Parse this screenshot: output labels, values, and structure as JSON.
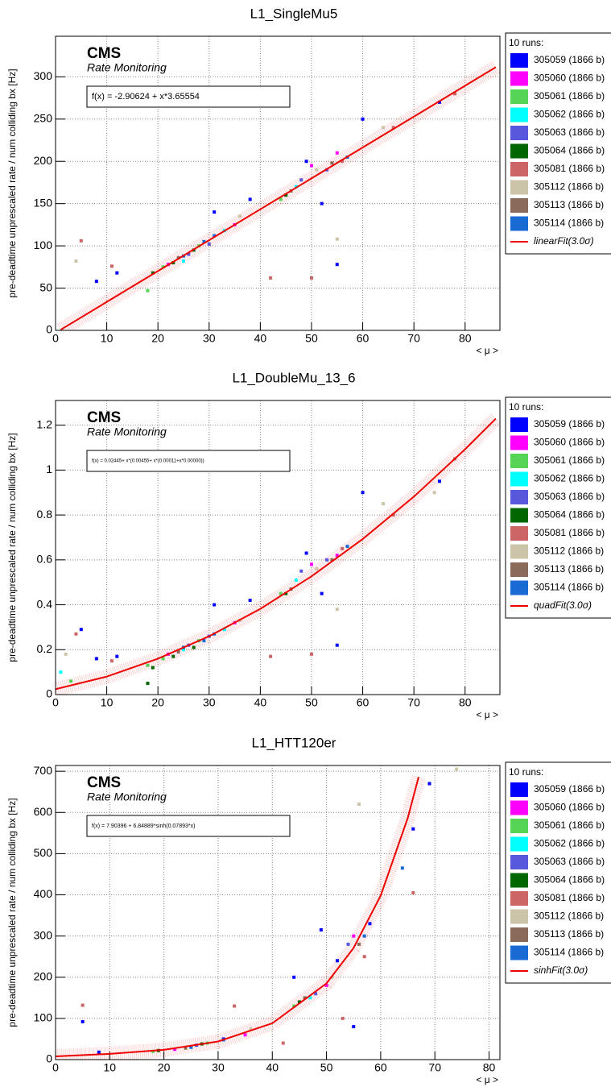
{
  "chart_data": [
    {
      "type": "scatter",
      "title": "L1_SingleMu5",
      "brand": "CMS",
      "subtitle": "Rate Monitoring",
      "annotation": "f(x) = -2.90624 + x*3.65554",
      "y_label": "pre-deadtime unprescaled rate / num colliding bx [Hz]",
      "x_label": "< μ >",
      "legend_title": "10 runs:",
      "xlim": [
        0,
        86.8
      ],
      "ylim": [
        0,
        348
      ],
      "xticks": [
        0,
        10,
        20,
        30,
        40,
        50,
        60,
        70,
        80
      ],
      "yticks": [
        0,
        50,
        100,
        150,
        200,
        250,
        300
      ],
      "grid": true,
      "series": [
        {
          "name": "305059 (1866 b)",
          "color": "#0000ff",
          "x": [
            8,
            12,
            31,
            38,
            49,
            52,
            55,
            60,
            75
          ],
          "values": [
            58,
            68,
            140,
            155,
            200,
            150,
            78,
            250,
            270
          ]
        },
        {
          "name": "305060 (1866 b)",
          "color": "#ff00ff",
          "x": [
            22,
            35,
            50,
            55
          ],
          "values": [
            78,
            125,
            195,
            210
          ]
        },
        {
          "name": "305061 (1866 b)",
          "color": "#55d455",
          "x": [
            18,
            21,
            28,
            44
          ],
          "values": [
            47,
            75,
            100,
            155
          ]
        },
        {
          "name": "305062 (1866 b)",
          "color": "#00ffff",
          "x": [
            25,
            33,
            47
          ],
          "values": [
            82,
            118,
            170
          ]
        },
        {
          "name": "305063 (1866 b)",
          "color": "#5858dd",
          "x": [
            26,
            30,
            48,
            53
          ],
          "values": [
            90,
            102,
            178,
            190
          ]
        },
        {
          "name": "305064 (1866 b)",
          "color": "#006600",
          "x": [
            19,
            23,
            27,
            45
          ],
          "values": [
            68,
            80,
            95,
            160
          ]
        },
        {
          "name": "305081 (1866 b)",
          "color": "#cc6666",
          "x": [
            5,
            11,
            42,
            50,
            56,
            66,
            78
          ],
          "values": [
            106,
            76,
            62,
            62,
            200,
            240,
            280
          ]
        },
        {
          "name": "305112 (1866 b)",
          "color": "#ccc4a8",
          "x": [
            4,
            36,
            51,
            55,
            64
          ],
          "values": [
            82,
            135,
            190,
            108,
            240
          ]
        },
        {
          "name": "305113 (1866 b)",
          "color": "#8a6a5a",
          "x": [
            24,
            46,
            54
          ],
          "values": [
            86,
            165,
            198
          ]
        },
        {
          "name": "305114 (1866 b)",
          "color": "#1a6ad4",
          "x": [
            25,
            29,
            31,
            57
          ],
          "values": [
            88,
            105,
            112,
            205
          ]
        }
      ],
      "fit": {
        "name": "linearFit(3.0σ)",
        "color": "#ee0000",
        "x": [
          1,
          20,
          40,
          60,
          86
        ],
        "values": [
          0.75,
          70.2,
          143.3,
          216.4,
          311.4
        ]
      }
    },
    {
      "type": "scatter",
      "title": "L1_DoubleMu_13_6",
      "brand": "CMS",
      "subtitle": "Rate Monitoring",
      "annotation": "f(x) = 0.02445+ x*(0.00455+ x*(0.00011+x*0.00000))",
      "y_label": "pre-deadtime unprescaled rate / num colliding bx [Hz]",
      "x_label": "< μ >",
      "legend_title": "10 runs:",
      "xlim": [
        0,
        86.8
      ],
      "ylim": [
        0,
        1.31
      ],
      "xticks": [
        0,
        10,
        20,
        30,
        40,
        50,
        60,
        70,
        80
      ],
      "yticks": [
        0,
        0.2,
        0.4,
        0.6,
        0.8,
        1,
        1.2
      ],
      "grid": true,
      "series": [
        {
          "name": "305059 (1866 b)",
          "color": "#0000ff",
          "x": [
            5,
            8,
            12,
            31,
            38,
            49,
            52,
            55,
            60,
            75
          ],
          "values": [
            0.29,
            0.16,
            0.17,
            0.4,
            0.42,
            0.63,
            0.45,
            0.22,
            0.9,
            0.95
          ]
        },
        {
          "name": "305060 (1866 b)",
          "color": "#ff00ff",
          "x": [
            22,
            35,
            50,
            55
          ],
          "values": [
            0.18,
            0.32,
            0.58,
            0.62
          ]
        },
        {
          "name": "305061 (1866 b)",
          "color": "#55d455",
          "x": [
            3,
            18,
            21,
            28,
            44
          ],
          "values": [
            0.06,
            0.13,
            0.16,
            0.24,
            0.45
          ]
        },
        {
          "name": "305062 (1866 b)",
          "color": "#00ffff",
          "x": [
            1,
            25,
            33,
            47
          ],
          "values": [
            0.1,
            0.2,
            0.29,
            0.51
          ]
        },
        {
          "name": "305063 (1866 b)",
          "color": "#5858dd",
          "x": [
            26,
            30,
            48,
            53
          ],
          "values": [
            0.22,
            0.26,
            0.55,
            0.6
          ]
        },
        {
          "name": "305064 (1866 b)",
          "color": "#006600",
          "x": [
            18,
            19,
            23,
            27,
            45
          ],
          "values": [
            0.05,
            0.12,
            0.17,
            0.21,
            0.45
          ]
        },
        {
          "name": "305081 (1866 b)",
          "color": "#cc6666",
          "x": [
            4,
            11,
            42,
            50,
            56,
            66,
            78
          ],
          "values": [
            0.27,
            0.15,
            0.17,
            0.18,
            0.65,
            0.8,
            1.05
          ]
        },
        {
          "name": "305112 (1866 b)",
          "color": "#ccc4a8",
          "x": [
            2,
            36,
            51,
            55,
            64,
            74
          ],
          "values": [
            0.18,
            0.33,
            0.56,
            0.38,
            0.85,
            0.9
          ]
        },
        {
          "name": "305113 (1866 b)",
          "color": "#8a6a5a",
          "x": [
            24,
            46,
            54
          ],
          "values": [
            0.19,
            0.47,
            0.6
          ]
        },
        {
          "name": "305114 (1866 b)",
          "color": "#1a6ad4",
          "x": [
            25,
            29,
            31,
            57
          ],
          "values": [
            0.21,
            0.24,
            0.27,
            0.66
          ]
        }
      ],
      "fit": {
        "name": "quadFit(3.0σ)",
        "color": "#ee0000",
        "x": [
          0,
          10,
          20,
          30,
          40,
          50,
          60,
          70,
          80,
          86
        ],
        "values": [
          0.024,
          0.08,
          0.16,
          0.26,
          0.382,
          0.527,
          0.693,
          0.882,
          1.093,
          1.229
        ]
      }
    },
    {
      "type": "scatter",
      "title": "L1_HTT120er",
      "brand": "CMS",
      "subtitle": "Rate Monitoring",
      "annotation": "f(x) = 7.90396 + 6.84889*sinh(0.07893*x)",
      "y_label": "pre-deadtime unprescaled rate / num colliding bx [Hz]",
      "x_label": "< μ >",
      "legend_title": "10 runs:",
      "xlim": [
        0,
        82
      ],
      "ylim": [
        0,
        714
      ],
      "xticks": [
        0,
        10,
        20,
        30,
        40,
        50,
        60,
        70,
        80
      ],
      "yticks": [
        0,
        100,
        200,
        300,
        400,
        500,
        600,
        700
      ],
      "grid": true,
      "series": [
        {
          "name": "305059 (1866 b)",
          "color": "#0000ff",
          "x": [
            5,
            8,
            31,
            44,
            49,
            52,
            55,
            58,
            66,
            69
          ],
          "values": [
            92,
            18,
            50,
            200,
            315,
            240,
            80,
            330,
            560,
            670
          ]
        },
        {
          "name": "305060 (1866 b)",
          "color": "#ff00ff",
          "x": [
            22,
            35,
            50,
            55
          ],
          "values": [
            25,
            60,
            180,
            300
          ]
        },
        {
          "name": "305061 (1866 b)",
          "color": "#55d455",
          "x": [
            18,
            28,
            44
          ],
          "values": [
            20,
            40,
            130
          ]
        },
        {
          "name": "305062 (1866 b)",
          "color": "#00ffff",
          "x": [
            25,
            47
          ],
          "values": [
            30,
            150
          ]
        },
        {
          "name": "305063 (1866 b)",
          "color": "#5858dd",
          "x": [
            26,
            48,
            54
          ],
          "values": [
            35,
            160,
            280
          ]
        },
        {
          "name": "305064 (1866 b)",
          "color": "#006600",
          "x": [
            19,
            27,
            45
          ],
          "values": [
            22,
            38,
            140
          ]
        },
        {
          "name": "305081 (1866 b)",
          "color": "#cc6666",
          "x": [
            5,
            33,
            42,
            53,
            57,
            66
          ],
          "values": [
            132,
            130,
            40,
            100,
            250,
            405
          ]
        },
        {
          "name": "305112 (1866 b)",
          "color": "#ccc4a8",
          "x": [
            36,
            51,
            56,
            74
          ],
          "values": [
            75,
            200,
            620,
            705
          ]
        },
        {
          "name": "305113 (1866 b)",
          "color": "#8a6a5a",
          "x": [
            24,
            46,
            56
          ],
          "values": [
            28,
            150,
            280
          ]
        },
        {
          "name": "305114 (1866 b)",
          "color": "#1a6ad4",
          "x": [
            25,
            31,
            57,
            64
          ],
          "values": [
            30,
            48,
            300,
            465
          ]
        }
      ],
      "fit": {
        "name": "sinhFit(3.0σ)",
        "color": "#ee0000",
        "x": [
          0,
          10,
          20,
          30,
          40,
          50,
          55,
          60,
          65,
          67
        ],
        "values": [
          7.9,
          13.9,
          23.7,
          44.1,
          88.2,
          185,
          271,
          398,
          587,
          686
        ]
      }
    }
  ]
}
